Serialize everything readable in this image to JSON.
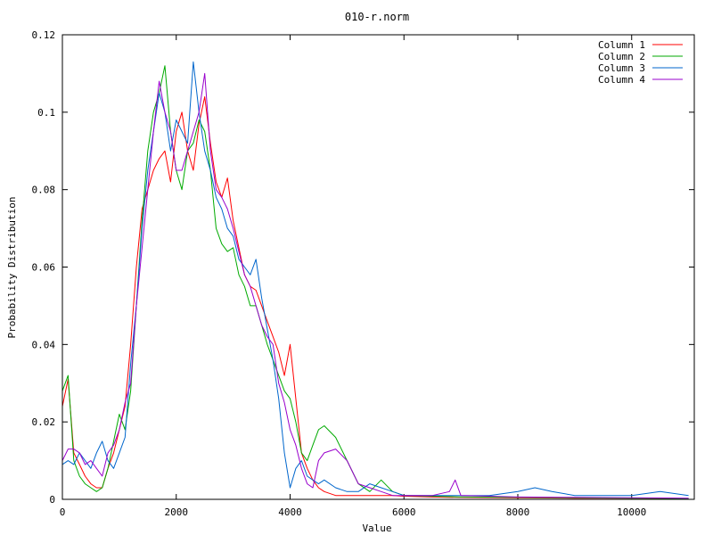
{
  "chart_data": {
    "type": "line",
    "title": "010-r.norm",
    "xlabel": "Value",
    "ylabel": "Probability Distribution",
    "xlim": [
      0,
      11100
    ],
    "ylim": [
      0,
      0.12
    ],
    "x_ticks": [
      0,
      2000,
      4000,
      6000,
      8000,
      10000
    ],
    "y_ticks": [
      0,
      0.02,
      0.04,
      0.06,
      0.08,
      0.1,
      0.12
    ],
    "x_tick_labels": [
      "0",
      "2000",
      "4000",
      "6000",
      "8000",
      "10000"
    ],
    "y_tick_labels": [
      "0",
      "0.02",
      "0.04",
      "0.06",
      "0.08",
      "0.1",
      "0.12"
    ],
    "grid": false,
    "legend_position": "top-right",
    "series": [
      {
        "name": "Column 1",
        "color": "#ff0000",
        "x": [
          0,
          100,
          200,
          300,
          400,
          500,
          600,
          700,
          800,
          900,
          1000,
          1100,
          1200,
          1300,
          1400,
          1500,
          1600,
          1700,
          1800,
          1900,
          2000,
          2100,
          2200,
          2300,
          2400,
          2500,
          2600,
          2700,
          2800,
          2900,
          3000,
          3100,
          3200,
          3300,
          3400,
          3500,
          3600,
          3700,
          3800,
          3900,
          4000,
          4100,
          4200,
          4300,
          4400,
          4500,
          4600,
          4800,
          5000,
          5200,
          5400,
          5600,
          5800,
          6000,
          6500,
          7000,
          8000,
          9000,
          10000,
          11000
        ],
        "y": [
          0.024,
          0.031,
          0.012,
          0.009,
          0.006,
          0.004,
          0.003,
          0.003,
          0.008,
          0.012,
          0.018,
          0.024,
          0.04,
          0.06,
          0.075,
          0.08,
          0.085,
          0.088,
          0.09,
          0.082,
          0.095,
          0.1,
          0.09,
          0.085,
          0.097,
          0.104,
          0.092,
          0.082,
          0.078,
          0.083,
          0.072,
          0.065,
          0.058,
          0.055,
          0.054,
          0.05,
          0.046,
          0.042,
          0.038,
          0.032,
          0.04,
          0.026,
          0.012,
          0.008,
          0.005,
          0.003,
          0.002,
          0.001,
          0.001,
          0.001,
          0.001,
          0.001,
          0.001,
          0.0008,
          0.0006,
          0.0005,
          0.0004,
          0.0003,
          0.0003,
          0.0002
        ]
      },
      {
        "name": "Column 2",
        "color": "#00aa00",
        "x": [
          0,
          100,
          200,
          300,
          400,
          500,
          600,
          700,
          800,
          900,
          1000,
          1100,
          1200,
          1300,
          1400,
          1500,
          1600,
          1700,
          1800,
          1900,
          2000,
          2100,
          2200,
          2300,
          2400,
          2500,
          2600,
          2700,
          2800,
          2900,
          3000,
          3100,
          3200,
          3300,
          3400,
          3500,
          3600,
          3700,
          3800,
          3900,
          4000,
          4100,
          4200,
          4300,
          4400,
          4500,
          4600,
          4800,
          5000,
          5200,
          5400,
          5600,
          5800,
          6000,
          6500,
          7000,
          8000,
          9000,
          10000,
          11000
        ],
        "y": [
          0.028,
          0.032,
          0.01,
          0.006,
          0.004,
          0.003,
          0.002,
          0.003,
          0.008,
          0.015,
          0.022,
          0.018,
          0.028,
          0.05,
          0.072,
          0.09,
          0.1,
          0.105,
          0.112,
          0.095,
          0.085,
          0.08,
          0.09,
          0.092,
          0.098,
          0.095,
          0.085,
          0.07,
          0.066,
          0.064,
          0.065,
          0.058,
          0.055,
          0.05,
          0.05,
          0.045,
          0.04,
          0.036,
          0.032,
          0.028,
          0.026,
          0.02,
          0.012,
          0.01,
          0.014,
          0.018,
          0.019,
          0.016,
          0.01,
          0.004,
          0.002,
          0.005,
          0.002,
          0.001,
          0.0008,
          0.0006,
          0.0005,
          0.0004,
          0.0003,
          0.0002
        ]
      },
      {
        "name": "Column 3",
        "color": "#0066cc",
        "x": [
          0,
          100,
          200,
          300,
          400,
          500,
          600,
          700,
          800,
          900,
          1000,
          1100,
          1200,
          1300,
          1400,
          1500,
          1600,
          1700,
          1800,
          1900,
          2000,
          2100,
          2200,
          2300,
          2400,
          2500,
          2600,
          2700,
          2800,
          2900,
          3000,
          3100,
          3200,
          3300,
          3400,
          3500,
          3600,
          3700,
          3800,
          3900,
          4000,
          4100,
          4200,
          4300,
          4400,
          4500,
          4600,
          4800,
          5000,
          5200,
          5400,
          5600,
          5800,
          6000,
          6500,
          7000,
          7500,
          8000,
          8300,
          8600,
          9000,
          9500,
          10000,
          10500,
          11000
        ],
        "y": [
          0.009,
          0.01,
          0.009,
          0.012,
          0.01,
          0.008,
          0.012,
          0.015,
          0.01,
          0.008,
          0.012,
          0.016,
          0.035,
          0.05,
          0.07,
          0.085,
          0.095,
          0.105,
          0.1,
          0.09,
          0.098,
          0.095,
          0.092,
          0.113,
          0.1,
          0.09,
          0.085,
          0.078,
          0.075,
          0.07,
          0.068,
          0.062,
          0.06,
          0.058,
          0.062,
          0.052,
          0.044,
          0.036,
          0.026,
          0.012,
          0.003,
          0.008,
          0.01,
          0.006,
          0.005,
          0.004,
          0.005,
          0.003,
          0.002,
          0.002,
          0.004,
          0.003,
          0.002,
          0.001,
          0.001,
          0.001,
          0.001,
          0.002,
          0.003,
          0.002,
          0.001,
          0.001,
          0.001,
          0.002,
          0.001
        ]
      },
      {
        "name": "Column 4",
        "color": "#9900cc",
        "x": [
          0,
          100,
          200,
          300,
          400,
          500,
          600,
          700,
          800,
          900,
          1000,
          1100,
          1200,
          1300,
          1400,
          1500,
          1600,
          1700,
          1800,
          1900,
          2000,
          2100,
          2200,
          2300,
          2400,
          2500,
          2600,
          2700,
          2800,
          2900,
          3000,
          3100,
          3200,
          3300,
          3400,
          3500,
          3600,
          3700,
          3800,
          3900,
          4000,
          4100,
          4200,
          4300,
          4400,
          4500,
          4600,
          4800,
          5000,
          5200,
          5400,
          5600,
          5800,
          6000,
          6500,
          6800,
          6900,
          7000,
          7500,
          8000,
          9000,
          10000,
          11000
        ],
        "y": [
          0.01,
          0.013,
          0.013,
          0.012,
          0.009,
          0.01,
          0.008,
          0.006,
          0.012,
          0.014,
          0.018,
          0.025,
          0.03,
          0.05,
          0.065,
          0.08,
          0.095,
          0.108,
          0.1,
          0.095,
          0.085,
          0.085,
          0.09,
          0.095,
          0.1,
          0.11,
          0.09,
          0.08,
          0.078,
          0.075,
          0.07,
          0.064,
          0.058,
          0.055,
          0.05,
          0.045,
          0.042,
          0.04,
          0.03,
          0.025,
          0.018,
          0.014,
          0.008,
          0.004,
          0.003,
          0.01,
          0.012,
          0.013,
          0.01,
          0.004,
          0.003,
          0.002,
          0.001,
          0.001,
          0.001,
          0.002,
          0.005,
          0.001,
          0.0008,
          0.0006,
          0.0005,
          0.0004,
          0.0003
        ]
      }
    ]
  }
}
